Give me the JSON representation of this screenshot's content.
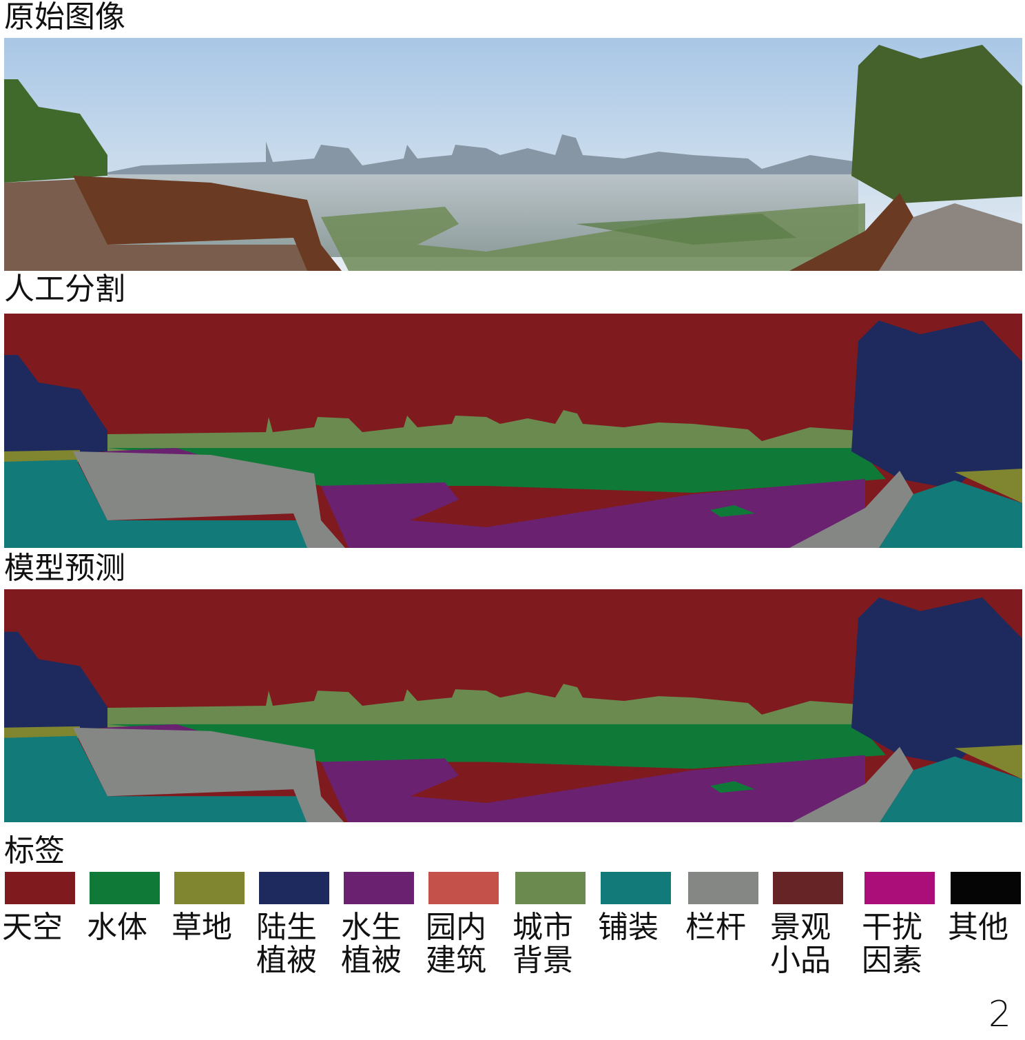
{
  "panels": {
    "original": "原始图像",
    "manual": "人工分割",
    "predicted": "模型预测",
    "legend": "标签"
  },
  "legend": [
    {
      "label": "天空",
      "color": "#7f1a1f"
    },
    {
      "label": "水体",
      "color": "#0f7a38"
    },
    {
      "label": "草地",
      "color": "#80852f"
    },
    {
      "label": "陆生\n植被",
      "color": "#1e2a5e"
    },
    {
      "label": "水生\n植被",
      "color": "#6a2170"
    },
    {
      "label": "园内\n建筑",
      "color": "#c4514a"
    },
    {
      "label": "城市\n背景",
      "color": "#6b8a4f"
    },
    {
      "label": "铺装",
      "color": "#137a7a"
    },
    {
      "label": "栏杆",
      "color": "#858784"
    },
    {
      "label": "景观\n小品",
      "color": "#662426"
    },
    {
      "label": "干扰\n因素",
      "color": "#ab0e78"
    },
    {
      "label": "其他",
      "color": "#050505"
    }
  ],
  "page_number": "2"
}
